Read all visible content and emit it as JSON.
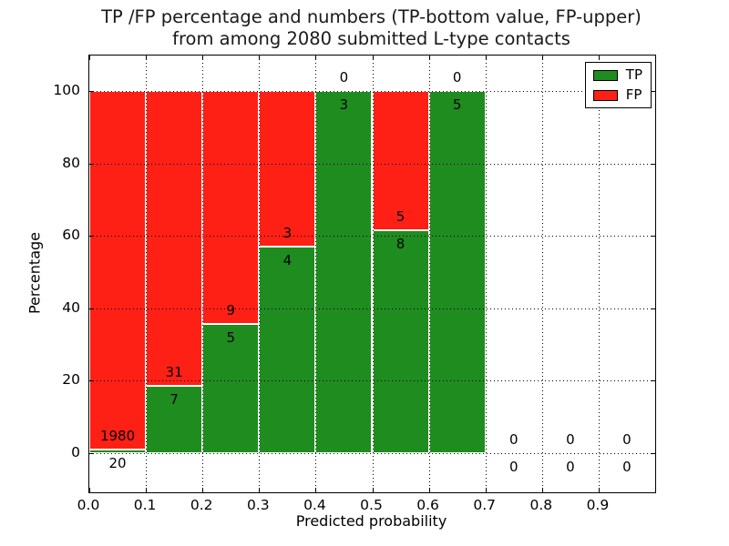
{
  "title": {
    "line1": "TP /FP percentage and numbers (TP-bottom value, FP-upper)",
    "line2": "from among 2080 submitted L-type contacts"
  },
  "total_submitted_contacts": "2080",
  "legend": {
    "position": "upper right",
    "entries": [
      {
        "label": "TP",
        "color": "#1f8c1f"
      },
      {
        "label": "FP",
        "color": "#ff2015"
      }
    ]
  },
  "chart_data": {
    "type": "bar",
    "stacked": true,
    "title": "TP /FP percentage and numbers (TP-bottom value, FP-upper) from among 2080 submitted L-type contacts",
    "xlabel": "Predicted probability",
    "ylabel": "Percentage",
    "x_ticks": [
      "0.0",
      "0.1",
      "0.2",
      "0.3",
      "0.4",
      "0.5",
      "0.6",
      "0.7",
      "0.8",
      "0.9"
    ],
    "y_ticks": [
      0,
      20,
      40,
      60,
      80,
      100
    ],
    "xlim": [
      0.0,
      1.0
    ],
    "ylim": [
      -10.9,
      109.8
    ],
    "grid": "dotted black, drawn above bars",
    "series": [
      {
        "name": "TP",
        "color": "#1f8c1f",
        "position": "bottom"
      },
      {
        "name": "FP",
        "color": "#ff2015",
        "position": "top"
      }
    ],
    "bins": [
      {
        "range": [
          0.0,
          0.1
        ],
        "tp": 20,
        "fp": 1980,
        "tp_pct": 1.0,
        "fp_pct": 99.0
      },
      {
        "range": [
          0.1,
          0.2
        ],
        "tp": 7,
        "fp": 31,
        "tp_pct": 18.4,
        "fp_pct": 81.6
      },
      {
        "range": [
          0.2,
          0.3
        ],
        "tp": 5,
        "fp": 9,
        "tp_pct": 35.7,
        "fp_pct": 64.3
      },
      {
        "range": [
          0.3,
          0.4
        ],
        "tp": 4,
        "fp": 3,
        "tp_pct": 57.1,
        "fp_pct": 42.9
      },
      {
        "range": [
          0.4,
          0.5
        ],
        "tp": 3,
        "fp": 0,
        "tp_pct": 100,
        "fp_pct": 0
      },
      {
        "range": [
          0.5,
          0.6
        ],
        "tp": 8,
        "fp": 5,
        "tp_pct": 61.5,
        "fp_pct": 38.5
      },
      {
        "range": [
          0.6,
          0.7
        ],
        "tp": 5,
        "fp": 0,
        "tp_pct": 100,
        "fp_pct": 0
      },
      {
        "range": [
          0.7,
          0.8
        ],
        "tp": 0,
        "fp": 0,
        "tp_pct": null,
        "fp_pct": null
      },
      {
        "range": [
          0.8,
          0.9
        ],
        "tp": 0,
        "fp": 0,
        "tp_pct": null,
        "fp_pct": null
      },
      {
        "range": [
          0.9,
          1.0
        ],
        "tp": 0,
        "fp": 0,
        "tp_pct": null,
        "fp_pct": null
      }
    ]
  }
}
